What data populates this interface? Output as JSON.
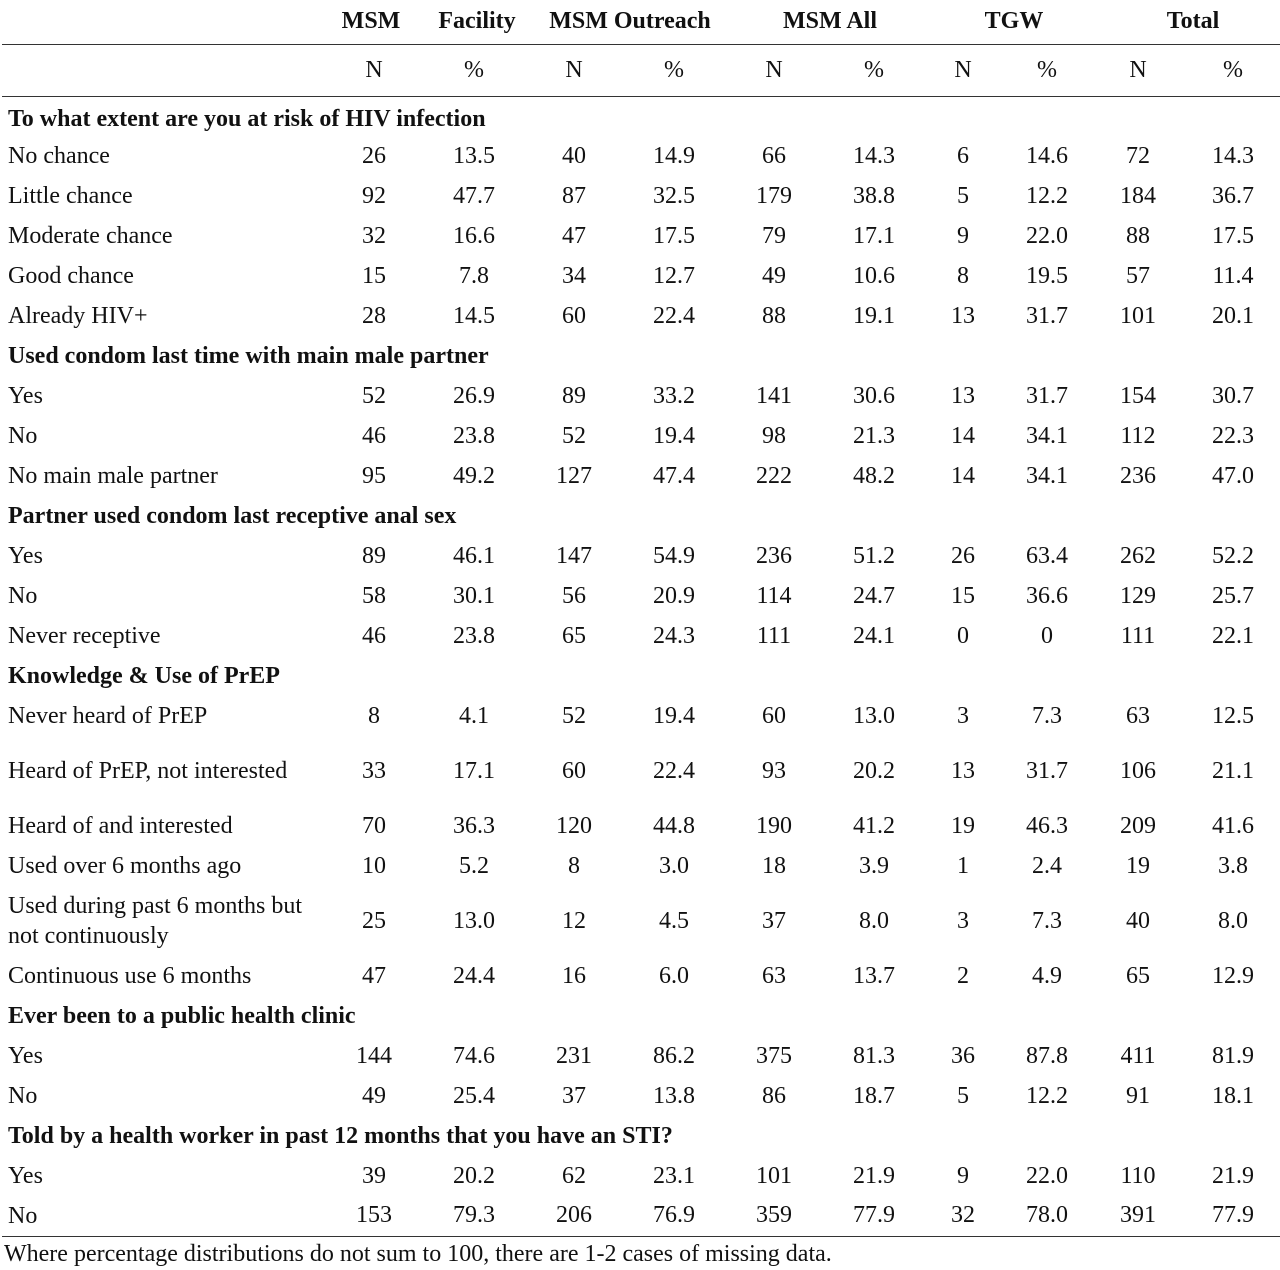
{
  "header": {
    "group_labels": [
      "MSM",
      "Facility",
      "MSM Outreach",
      "MSM All",
      "TGW",
      "Total"
    ],
    "sub_labels": [
      "N",
      "%",
      "N",
      "%",
      "N",
      "%",
      "N",
      "%",
      "N",
      "%"
    ]
  },
  "sections": [
    {
      "title": "To what extent are you at risk of HIV infection",
      "rows": [
        {
          "label": "No chance",
          "values": [
            "26",
            "13.5",
            "40",
            "14.9",
            "66",
            "14.3",
            "6",
            "14.6",
            "72",
            "14.3"
          ]
        },
        {
          "label": "Little chance",
          "values": [
            "92",
            "47.7",
            "87",
            "32.5",
            "179",
            "38.8",
            "5",
            "12.2",
            "184",
            "36.7"
          ]
        },
        {
          "label": "Moderate chance",
          "values": [
            "32",
            "16.6",
            "47",
            "17.5",
            "79",
            "17.1",
            "9",
            "22.0",
            "88",
            "17.5"
          ]
        },
        {
          "label": "Good chance",
          "values": [
            "15",
            "7.8",
            "34",
            "12.7",
            "49",
            "10.6",
            "8",
            "19.5",
            "57",
            "11.4"
          ]
        },
        {
          "label": "Already HIV+",
          "values": [
            "28",
            "14.5",
            "60",
            "22.4",
            "88",
            "19.1",
            "13",
            "31.7",
            "101",
            "20.1"
          ]
        }
      ]
    },
    {
      "title": "Used condom last time with main male partner",
      "rows": [
        {
          "label": "Yes",
          "values": [
            "52",
            "26.9",
            "89",
            "33.2",
            "141",
            "30.6",
            "13",
            "31.7",
            "154",
            "30.7"
          ]
        },
        {
          "label": "No",
          "values": [
            "46",
            "23.8",
            "52",
            "19.4",
            "98",
            "21.3",
            "14",
            "34.1",
            "112",
            "22.3"
          ]
        },
        {
          "label": "No main male partner",
          "values": [
            "95",
            "49.2",
            "127",
            "47.4",
            "222",
            "48.2",
            "14",
            "34.1",
            "236",
            "47.0"
          ]
        }
      ]
    },
    {
      "title": "Partner used condom last receptive anal sex",
      "rows": [
        {
          "label": "Yes",
          "values": [
            "89",
            "46.1",
            "147",
            "54.9",
            "236",
            "51.2",
            "26",
            "63.4",
            "262",
            "52.2"
          ]
        },
        {
          "label": "No",
          "values": [
            "58",
            "30.1",
            "56",
            "20.9",
            "114",
            "24.7",
            "15",
            "36.6",
            "129",
            "25.7"
          ]
        },
        {
          "label": "Never receptive",
          "values": [
            "46",
            "23.8",
            "65",
            "24.3",
            "111",
            "24.1",
            "0",
            "0",
            "111",
            "22.1"
          ]
        }
      ]
    },
    {
      "title": "Knowledge & Use of PrEP",
      "rows": [
        {
          "label": "Never heard of PrEP",
          "values": [
            "8",
            "4.1",
            "52",
            "19.4",
            "60",
            "13.0",
            "3",
            "7.3",
            "63",
            "12.5"
          ]
        },
        {
          "label": "Heard of PrEP, not interested",
          "values": [
            "33",
            "17.1",
            "60",
            "22.4",
            "93",
            "20.2",
            "13",
            "31.7",
            "106",
            "21.1"
          ]
        },
        {
          "label": "Heard of and interested",
          "values": [
            "70",
            "36.3",
            "120",
            "44.8",
            "190",
            "41.2",
            "19",
            "46.3",
            "209",
            "41.6"
          ]
        },
        {
          "label": "Used over 6 months ago",
          "values": [
            "10",
            "5.2",
            "8",
            "3.0",
            "18",
            "3.9",
            "1",
            "2.4",
            "19",
            "3.8"
          ]
        },
        {
          "label": "Used during past 6 months but not continuously",
          "values": [
            "25",
            "13.0",
            "12",
            "4.5",
            "37",
            "8.0",
            "3",
            "7.3",
            "40",
            "8.0"
          ]
        },
        {
          "label": "Continuous use 6 months",
          "values": [
            "47",
            "24.4",
            "16",
            "6.0",
            "63",
            "13.7",
            "2",
            "4.9",
            "65",
            "12.9"
          ]
        }
      ]
    },
    {
      "title": "Ever been to a public health clinic",
      "rows": [
        {
          "label": "Yes",
          "values": [
            "144",
            "74.6",
            "231",
            "86.2",
            "375",
            "81.3",
            "36",
            "87.8",
            "411",
            "81.9"
          ]
        },
        {
          "label": "No",
          "values": [
            "49",
            "25.4",
            "37",
            "13.8",
            "86",
            "18.7",
            "5",
            "12.2",
            "91",
            "18.1"
          ]
        }
      ]
    },
    {
      "title": "Told by a health worker in past 12 months that you have an STI?",
      "rows": [
        {
          "label": "Yes",
          "values": [
            "39",
            "20.2",
            "62",
            "23.1",
            "101",
            "21.9",
            "9",
            "22.0",
            "110",
            "21.9"
          ]
        },
        {
          "label": "No",
          "values": [
            "153",
            "79.3",
            "206",
            "76.9",
            "359",
            "77.9",
            "32",
            "78.0",
            "391",
            "77.9"
          ]
        }
      ]
    }
  ],
  "footnote": "Where percentage distributions do not sum to 100, there are 1-2 cases of missing data."
}
